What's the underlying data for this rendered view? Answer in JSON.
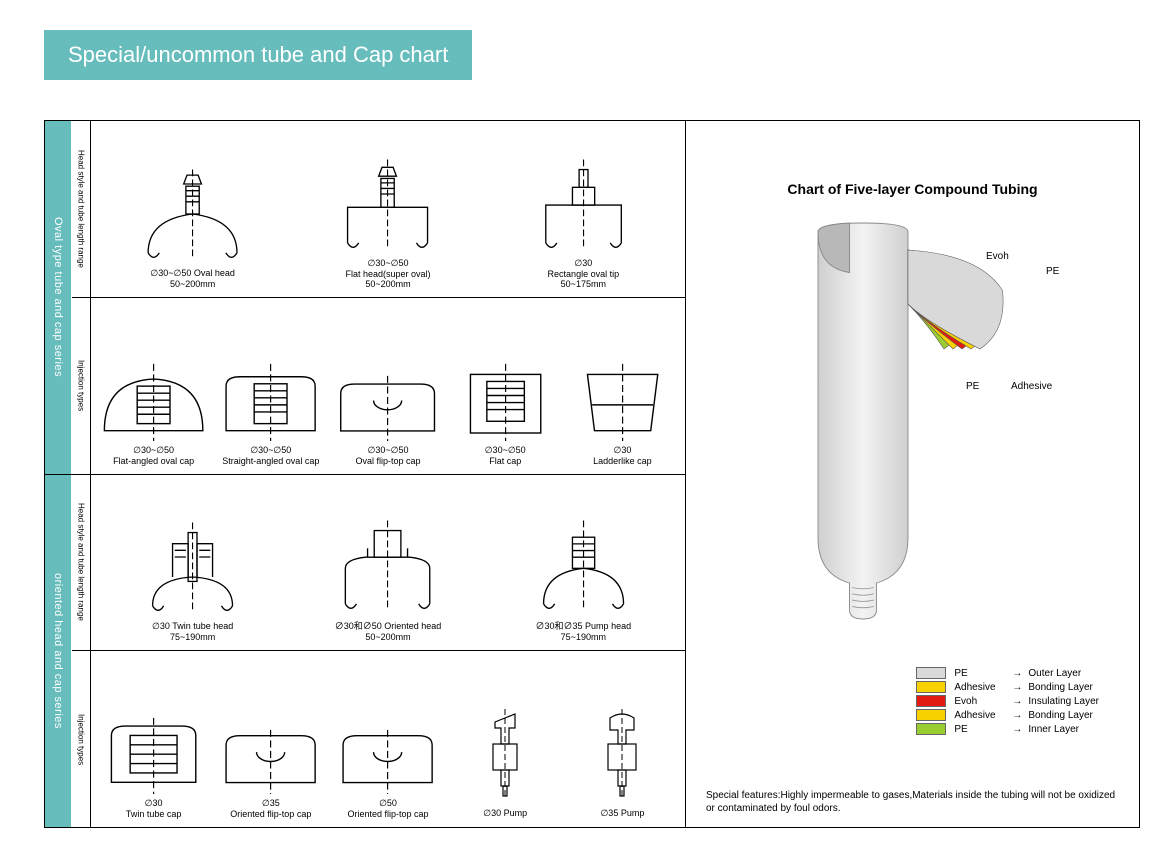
{
  "colors": {
    "teal": "#67bcbc",
    "gray": "#d9d9d9",
    "pe_outer": "#d9d9d9",
    "adhesive": "#f7d200",
    "evoh": "#e31b13",
    "pe_inner": "#9acd32",
    "border": "#000000"
  },
  "title": "Special/uncommon tube and Cap chart",
  "sections": [
    {
      "tab": "Oval type tube and cap series",
      "rows": [
        {
          "label": "Head style and tube length range",
          "items": [
            {
              "shape": "ovalhead",
              "line1": "∅30~∅50 Oval head",
              "line2": "50~200mm"
            },
            {
              "shape": "flatoval",
              "line1": "∅30~∅50",
              "line2": "Flat head(super oval)",
              "line3": "50~200mm"
            },
            {
              "shape": "recttip",
              "line1": "∅30",
              "line2": "Rectangle oval tip",
              "line3": "50~175mm"
            }
          ]
        },
        {
          "label": "Injection types",
          "items": [
            {
              "shape": "flatangledcap",
              "line1": "∅30~∅50",
              "line2": "Flat-angled oval cap"
            },
            {
              "shape": "straightangledcap",
              "line1": "∅30~∅50",
              "line2": "Straight-angled oval cap"
            },
            {
              "shape": "ovalfliptop",
              "line1": "∅30~∅50",
              "line2": "Oval flip-top cap"
            },
            {
              "shape": "flatcap",
              "line1": "∅30~∅50",
              "line2": "Flat cap"
            },
            {
              "shape": "laddercap",
              "line1": "∅30",
              "line2": "Ladderlike cap"
            }
          ]
        }
      ]
    },
    {
      "tab": "oriented head and cap series",
      "rows": [
        {
          "label": "Head style and tube length range",
          "items": [
            {
              "shape": "twinhead",
              "line1": "∅30 Twin tube head",
              "line2": "75~190mm"
            },
            {
              "shape": "orientedhead",
              "line1": "∅30和∅50 Oriented head",
              "line2": "50~200mm"
            },
            {
              "shape": "pumphead",
              "line1": "∅30和∅35 Pump head",
              "line2": "75~190mm"
            }
          ]
        },
        {
          "label": "Injection types",
          "items": [
            {
              "shape": "twintubecap",
              "line1": "∅30",
              "line2": "Twin tube cap"
            },
            {
              "shape": "orientedflip",
              "line1": "∅35",
              "line2": "Oriented flip-top cap"
            },
            {
              "shape": "orientedflip",
              "line1": "∅50",
              "line2": "Oriented flip-top cap"
            },
            {
              "shape": "pump",
              "line1": "∅30 Pump",
              "line2": ""
            },
            {
              "shape": "pump2",
              "line1": "∅35 Pump",
              "line2": ""
            }
          ]
        }
      ]
    }
  ],
  "five_layer": {
    "title": "Chart of Five-layer Compound Tubing",
    "labels": {
      "evoh": "Evoh",
      "pe": "PE",
      "adhesive": "Adhesive",
      "pe2": "PE"
    },
    "legend": [
      {
        "color": "#d9d9d9",
        "name": "PE",
        "desc": "Outer Layer"
      },
      {
        "color": "#f7d200",
        "name": "Adhesive",
        "desc": "Bonding Layer"
      },
      {
        "color": "#e31b13",
        "name": "Evoh",
        "desc": "Insulating Layer"
      },
      {
        "color": "#f7d200",
        "name": "Adhesive",
        "desc": "Bonding Layer"
      },
      {
        "color": "#9acd32",
        "name": "PE",
        "desc": "Inner Layer"
      }
    ],
    "footnote": "Special features:Highly impermeable to gases,Materials inside the tubing will not be oxidized or contaminated by foul odors."
  }
}
